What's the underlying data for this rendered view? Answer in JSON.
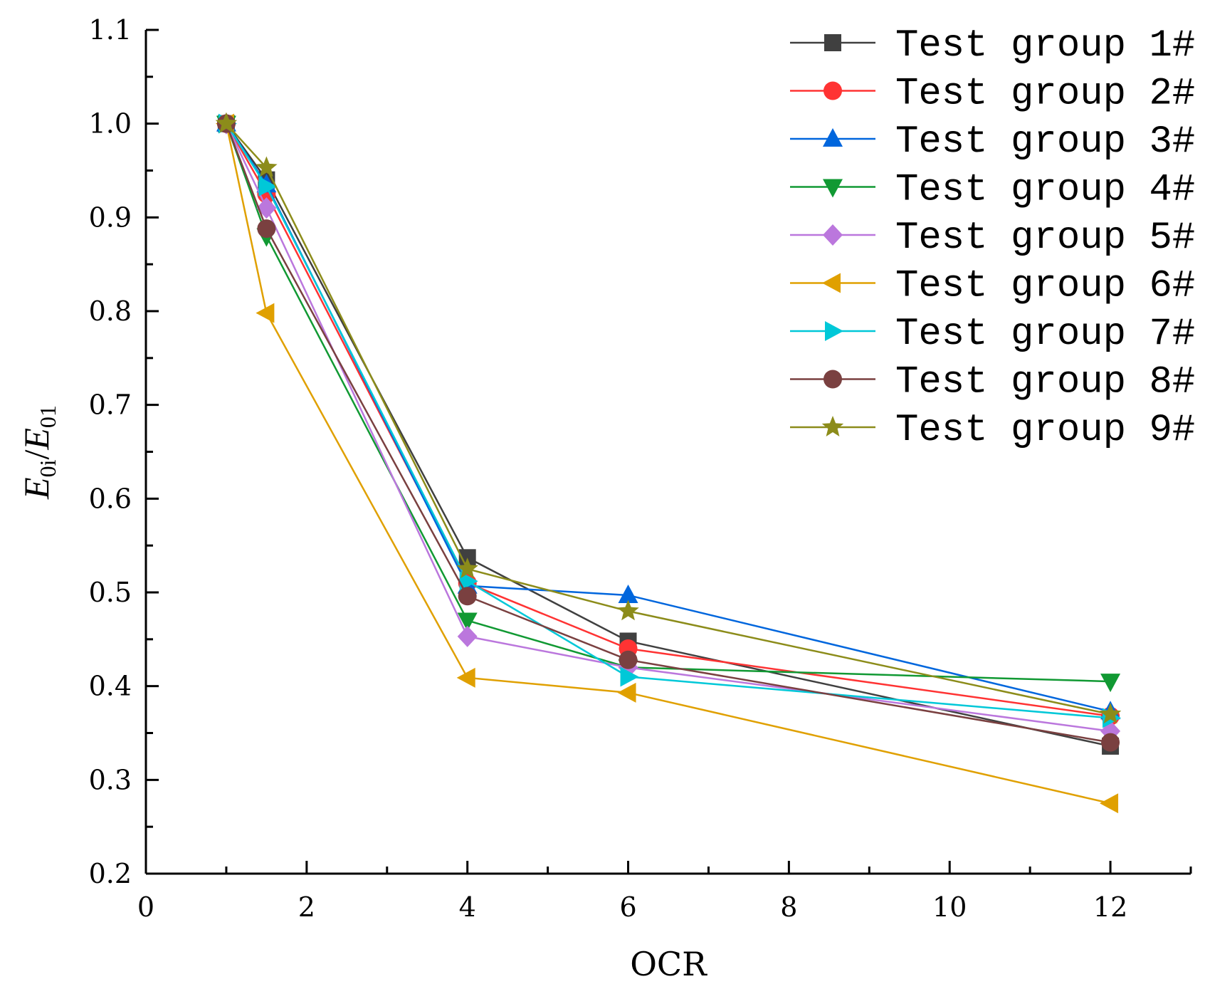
{
  "chart_data": {
    "type": "line",
    "title": "",
    "xlabel": "OCR",
    "ylabel": {
      "num_main": "E",
      "num_sub": "0i",
      "slash": "/",
      "den_main": "E",
      "den_sub": "01"
    },
    "xlim": [
      0,
      13
    ],
    "ylim": [
      0.2,
      1.1
    ],
    "x_ticks": [
      0,
      2,
      4,
      6,
      8,
      10,
      12
    ],
    "x_tick_labels": [
      "0",
      "2",
      "4",
      "6",
      "8",
      "10",
      "12"
    ],
    "y_ticks": [
      0.2,
      0.3,
      0.4,
      0.5,
      0.6,
      0.7,
      0.8,
      0.9,
      1.0,
      1.1
    ],
    "y_tick_labels": [
      "0.2",
      "0.3",
      "0.4",
      "0.5",
      "0.6",
      "0.7",
      "0.8",
      "0.9",
      "1.0",
      "1.1"
    ],
    "x": [
      1,
      1.5,
      4,
      6,
      12
    ],
    "grid": false,
    "legend_position": "top-right",
    "series": [
      {
        "name": "Test group 1#",
        "marker": "square",
        "color": "#404040",
        "values": [
          1.0,
          0.94,
          0.537,
          0.448,
          0.336
        ]
      },
      {
        "name": "Test group 2#",
        "marker": "circle",
        "color": "#ff3333",
        "values": [
          1.0,
          0.925,
          0.51,
          0.44,
          0.368
        ]
      },
      {
        "name": "Test group 3#",
        "marker": "triangle-up",
        "color": "#0066dd",
        "values": [
          1.0,
          0.935,
          0.507,
          0.497,
          0.373
        ]
      },
      {
        "name": "Test group 4#",
        "marker": "triangle-down",
        "color": "#119933",
        "values": [
          1.0,
          0.88,
          0.47,
          0.42,
          0.405
        ]
      },
      {
        "name": "Test group 5#",
        "marker": "diamond",
        "color": "#bb77dd",
        "values": [
          1.0,
          0.91,
          0.453,
          0.42,
          0.352
        ]
      },
      {
        "name": "Test group 6#",
        "marker": "triangle-left",
        "color": "#e0a000",
        "values": [
          1.0,
          0.798,
          0.409,
          0.393,
          0.275
        ]
      },
      {
        "name": "Test group 7#",
        "marker": "triangle-right",
        "color": "#00c8d8",
        "values": [
          1.0,
          0.933,
          0.512,
          0.41,
          0.366
        ]
      },
      {
        "name": "Test group 8#",
        "marker": "circle",
        "color": "#7a4040",
        "values": [
          1.0,
          0.888,
          0.496,
          0.428,
          0.34
        ]
      },
      {
        "name": "Test group 9#",
        "marker": "star",
        "color": "#8c8c1a",
        "values": [
          1.0,
          0.953,
          0.525,
          0.48,
          0.37
        ]
      }
    ]
  }
}
